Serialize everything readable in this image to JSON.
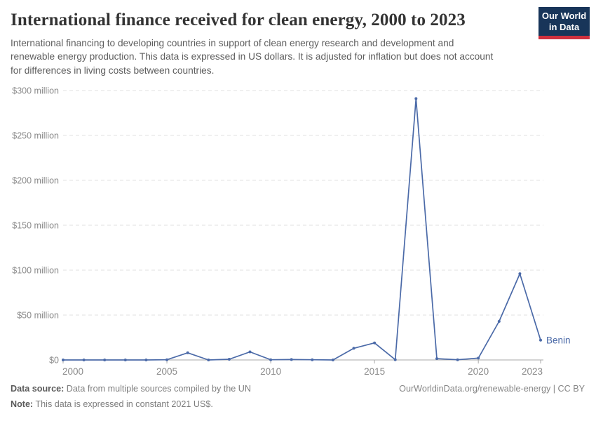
{
  "header": {
    "title": "International finance received for clean energy, 2000 to 2023",
    "subtitle": "International financing to developing countries in support of clean energy research and development and renewable energy production. This data is expressed in US dollars. It is adjusted for inflation but does not account for differences in living costs between countries.",
    "logo": {
      "line1": "Our World",
      "line2": "in Data"
    }
  },
  "chart_data": {
    "type": "line",
    "title": "International finance received for clean energy, 2000 to 2023",
    "unit": "US$ (constant 2021), millions",
    "xlim": [
      2000,
      2023
    ],
    "ylim": [
      0,
      300
    ],
    "grid": "horizontal dashed",
    "legend_position": "end-of-line label",
    "x_ticks": [
      2000,
      2005,
      2010,
      2015,
      2020,
      2023
    ],
    "y_ticks": [
      {
        "value": 0,
        "label": "$0"
      },
      {
        "value": 50,
        "label": "$50 million"
      },
      {
        "value": 100,
        "label": "$100 million"
      },
      {
        "value": 150,
        "label": "$150 million"
      },
      {
        "value": 200,
        "label": "$200 million"
      },
      {
        "value": 250,
        "label": "$250 million"
      },
      {
        "value": 300,
        "label": "$300 million"
      }
    ],
    "series": [
      {
        "name": "Benin",
        "color": "#4b6aa8",
        "x": [
          2000,
          2001,
          2002,
          2003,
          2004,
          2005,
          2006,
          2007,
          2008,
          2009,
          2010,
          2011,
          2012,
          2013,
          2014,
          2015,
          2016,
          2017,
          2018,
          2019,
          2020,
          2021,
          2022,
          2023
        ],
        "values": [
          0,
          0,
          0,
          0,
          0,
          0.2,
          8,
          0,
          0.8,
          9,
          0.2,
          0.5,
          0.2,
          0,
          13,
          19,
          0.3,
          291,
          1.5,
          0.2,
          2,
          43,
          96,
          22
        ]
      }
    ]
  },
  "footer": {
    "source_label": "Data source:",
    "source_text": "Data from multiple sources compiled by the UN",
    "note_label": "Note:",
    "note_text": "This data is expressed in constant 2021 US$.",
    "link": "OurWorldinData.org/renewable-energy | CC BY"
  },
  "colors": {
    "line": "#4b6aa8",
    "grid": "#e2e2e2",
    "axis": "#a9a9a9",
    "tick_label": "#8a8a8a",
    "title": "#333333",
    "subtitle": "#5e5e5e",
    "logo_bg": "#183559",
    "logo_red": "#cf303e"
  }
}
